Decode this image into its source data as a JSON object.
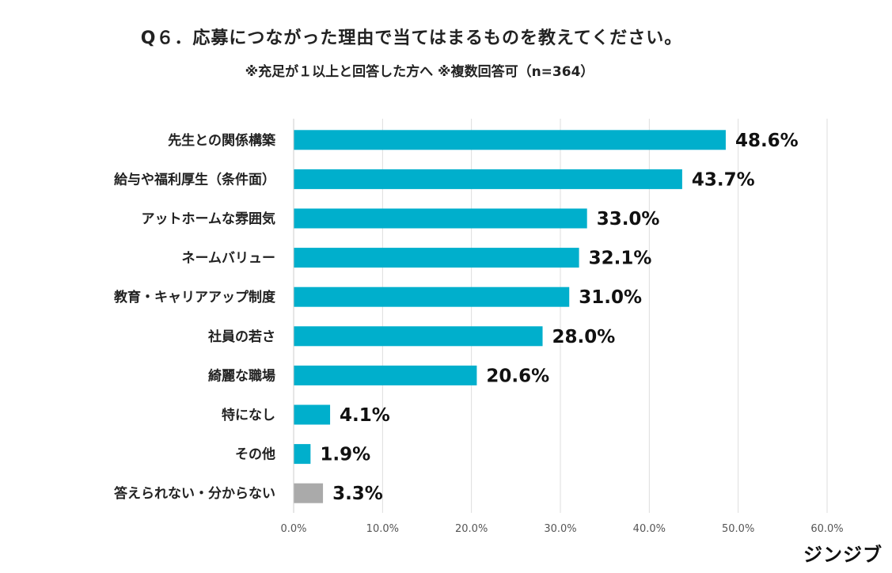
{
  "title": "Q６．応募につながった理由で当てはまるものを教えてください。",
  "subtitle": "※充足が１以上と回答した方へ ※複数回答可（n=364）",
  "brand": "ジンジブ",
  "colors": {
    "bar": "#00afcc",
    "bar_other": "#aaaaaa",
    "grid": "#dddddd"
  },
  "chart_data": {
    "type": "bar",
    "orientation": "horizontal",
    "categories": [
      "先生との関係構築",
      "給与や福利厚生（条件面）",
      "アットホームな雰囲気",
      "ネームバリュー",
      "教育・キャリアアップ制度",
      "社員の若さ",
      "綺麗な職場",
      "特になし",
      "その他",
      "答えられない・分からない"
    ],
    "values": [
      48.6,
      43.7,
      33.0,
      32.1,
      31.0,
      28.0,
      20.6,
      4.1,
      1.9,
      3.3
    ],
    "value_labels": [
      "48.6%",
      "43.7%",
      "33.0%",
      "32.1%",
      "31.0%",
      "28.0%",
      "20.6%",
      "4.1%",
      "1.9%",
      "3.3%"
    ],
    "xlim": [
      0,
      60
    ],
    "xticks": [
      0,
      10,
      20,
      30,
      40,
      50,
      60
    ],
    "xtick_labels": [
      "0.0%",
      "10.0%",
      "20.0%",
      "30.0%",
      "40.0%",
      "50.0%",
      "60.0%"
    ],
    "grid": true,
    "legend": "none"
  }
}
